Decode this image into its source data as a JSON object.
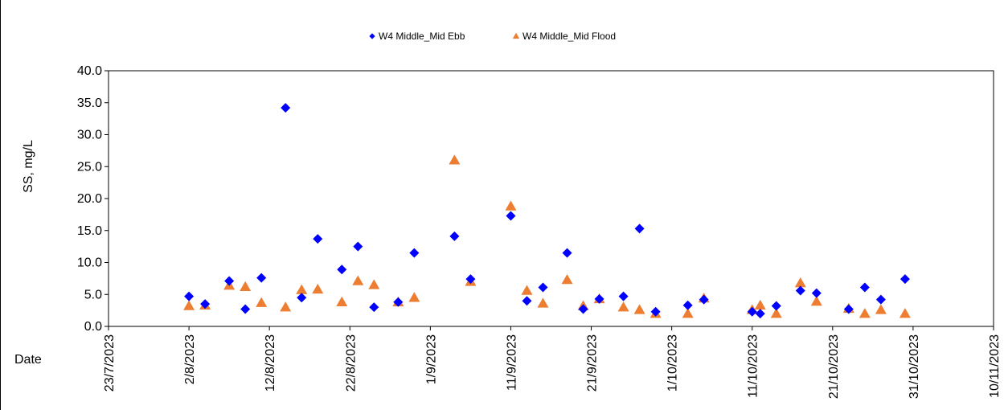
{
  "chart_data": {
    "type": "scatter",
    "ylabel": "SS, mg/L",
    "xlabel": "Date",
    "ylim": [
      0,
      40
    ],
    "y_ticks": [
      "0.0",
      "5.0",
      "10.0",
      "15.0",
      "20.0",
      "25.0",
      "30.0",
      "35.0",
      "40.0"
    ],
    "x_ticks": [
      "23/7/2023",
      "2/8/2023",
      "12/8/2023",
      "22/8/2023",
      "1/9/2023",
      "11/9/2023",
      "21/9/2023",
      "1/10/2023",
      "11/10/2023",
      "21/10/2023",
      "31/10/2023",
      "10/11/2023"
    ],
    "x_range": [
      "2023-07-23",
      "2023-11-10"
    ],
    "grid": false,
    "legend_position": "top-center",
    "series": [
      {
        "name": "W4 Middle_Mid Ebb",
        "marker": "diamond",
        "color": "#0000FF",
        "points": [
          {
            "x": "2023-08-02",
            "y": 4.7
          },
          {
            "x": "2023-08-04",
            "y": 3.5
          },
          {
            "x": "2023-08-07",
            "y": 7.1
          },
          {
            "x": "2023-08-09",
            "y": 2.7
          },
          {
            "x": "2023-08-11",
            "y": 7.6
          },
          {
            "x": "2023-08-14",
            "y": 34.2
          },
          {
            "x": "2023-08-16",
            "y": 4.5
          },
          {
            "x": "2023-08-18",
            "y": 13.7
          },
          {
            "x": "2023-08-21",
            "y": 8.9
          },
          {
            "x": "2023-08-23",
            "y": 12.5
          },
          {
            "x": "2023-08-25",
            "y": 3.0
          },
          {
            "x": "2023-08-28",
            "y": 3.8
          },
          {
            "x": "2023-08-30",
            "y": 11.5
          },
          {
            "x": "2023-09-04",
            "y": 14.1
          },
          {
            "x": "2023-09-06",
            "y": 7.4
          },
          {
            "x": "2023-09-11",
            "y": 17.3
          },
          {
            "x": "2023-09-13",
            "y": 4.0
          },
          {
            "x": "2023-09-15",
            "y": 6.1
          },
          {
            "x": "2023-09-18",
            "y": 11.5
          },
          {
            "x": "2023-09-20",
            "y": 2.7
          },
          {
            "x": "2023-09-22",
            "y": 4.3
          },
          {
            "x": "2023-09-25",
            "y": 4.7
          },
          {
            "x": "2023-09-27",
            "y": 15.3
          },
          {
            "x": "2023-09-29",
            "y": 2.3
          },
          {
            "x": "2023-10-03",
            "y": 3.3
          },
          {
            "x": "2023-10-05",
            "y": 4.2
          },
          {
            "x": "2023-10-11",
            "y": 2.3
          },
          {
            "x": "2023-10-12",
            "y": 2.0
          },
          {
            "x": "2023-10-14",
            "y": 3.2
          },
          {
            "x": "2023-10-17",
            "y": 5.6
          },
          {
            "x": "2023-10-19",
            "y": 5.2
          },
          {
            "x": "2023-10-23",
            "y": 2.7
          },
          {
            "x": "2023-10-25",
            "y": 6.1
          },
          {
            "x": "2023-10-27",
            "y": 4.2
          },
          {
            "x": "2023-10-30",
            "y": 7.4
          }
        ]
      },
      {
        "name": "W4 Middle_Mid Flood",
        "marker": "triangle",
        "color": "#ED7D31",
        "points": [
          {
            "x": "2023-08-02",
            "y": 3.2
          },
          {
            "x": "2023-08-04",
            "y": 3.3
          },
          {
            "x": "2023-08-07",
            "y": 6.4
          },
          {
            "x": "2023-08-09",
            "y": 6.2
          },
          {
            "x": "2023-08-11",
            "y": 3.7
          },
          {
            "x": "2023-08-14",
            "y": 3.0
          },
          {
            "x": "2023-08-16",
            "y": 5.7
          },
          {
            "x": "2023-08-18",
            "y": 5.8
          },
          {
            "x": "2023-08-21",
            "y": 3.8
          },
          {
            "x": "2023-08-23",
            "y": 7.1
          },
          {
            "x": "2023-08-25",
            "y": 6.5
          },
          {
            "x": "2023-08-28",
            "y": 3.8
          },
          {
            "x": "2023-08-30",
            "y": 4.5
          },
          {
            "x": "2023-09-04",
            "y": 26.0
          },
          {
            "x": "2023-09-06",
            "y": 7.0
          },
          {
            "x": "2023-09-11",
            "y": 18.8
          },
          {
            "x": "2023-09-13",
            "y": 5.6
          },
          {
            "x": "2023-09-15",
            "y": 3.6
          },
          {
            "x": "2023-09-18",
            "y": 7.3
          },
          {
            "x": "2023-09-20",
            "y": 3.2
          },
          {
            "x": "2023-09-22",
            "y": 4.3
          },
          {
            "x": "2023-09-25",
            "y": 3.0
          },
          {
            "x": "2023-09-27",
            "y": 2.6
          },
          {
            "x": "2023-09-29",
            "y": 2.0
          },
          {
            "x": "2023-10-03",
            "y": 2.0
          },
          {
            "x": "2023-10-05",
            "y": 4.4
          },
          {
            "x": "2023-10-11",
            "y": 2.6
          },
          {
            "x": "2023-10-12",
            "y": 3.3
          },
          {
            "x": "2023-10-14",
            "y": 2.0
          },
          {
            "x": "2023-10-17",
            "y": 6.8
          },
          {
            "x": "2023-10-19",
            "y": 3.9
          },
          {
            "x": "2023-10-23",
            "y": 2.8
          },
          {
            "x": "2023-10-25",
            "y": 2.0
          },
          {
            "x": "2023-10-27",
            "y": 2.6
          },
          {
            "x": "2023-10-30",
            "y": 2.0
          }
        ]
      }
    ]
  }
}
